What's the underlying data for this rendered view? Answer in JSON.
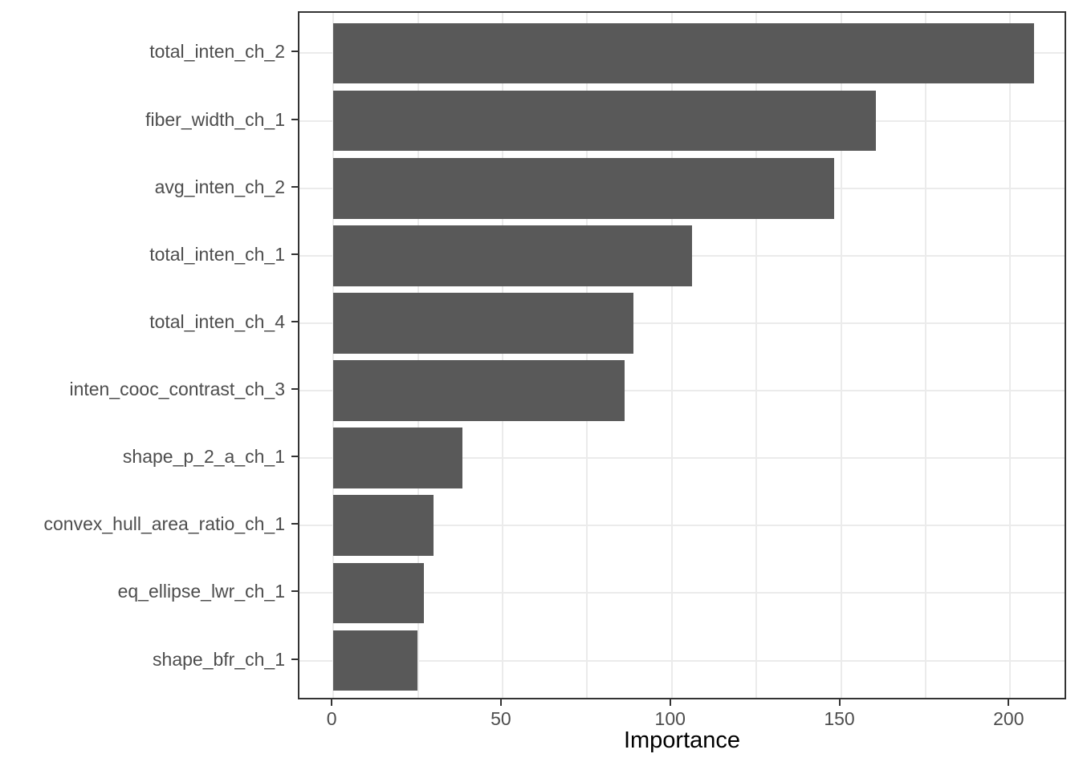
{
  "colors": {
    "bar_fill": "#595959",
    "gridline": "#EBEBEB",
    "panel_border": "#333333",
    "tick_mark": "#333333",
    "axis_text": "#4D4D4D",
    "axis_title": "#000000",
    "background": "#FFFFFF"
  },
  "chart_data": {
    "type": "bar",
    "orientation": "horizontal",
    "title": "",
    "xlabel": "Importance",
    "ylabel": "",
    "categories": [
      "total_inten_ch_2",
      "fiber_width_ch_1",
      "avg_inten_ch_2",
      "total_inten_ch_1",
      "total_inten_ch_4",
      "inten_cooc_contrast_ch_3",
      "shape_p_2_a_ch_1",
      "convex_hull_area_ratio_ch_1",
      "eq_ellipse_lwr_ch_1",
      "shape_bfr_ch_1"
    ],
    "values": [
      207.1,
      160.2,
      147.9,
      105.9,
      88.6,
      86.0,
      38.2,
      29.6,
      26.8,
      24.9
    ],
    "x_domain": [
      -10,
      217
    ],
    "x_ticks_major": [
      0,
      50,
      100,
      150,
      200
    ],
    "x_ticks_minor": [
      25,
      75,
      125,
      175
    ],
    "bar_fraction": 0.9,
    "category_expansion": 0.6,
    "grid": "x: major+minor, y: major at category centers",
    "legend": "none",
    "theme": "ggplot2 theme_bw"
  }
}
